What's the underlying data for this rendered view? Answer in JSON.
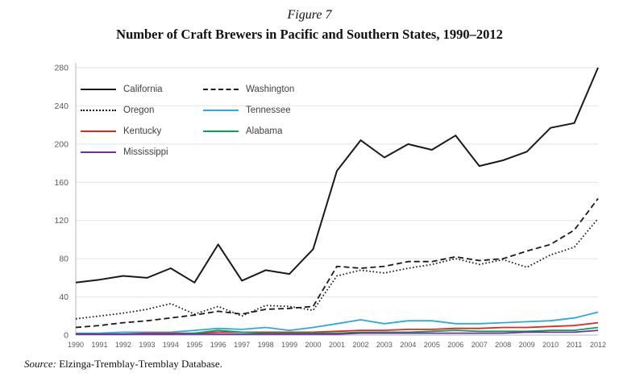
{
  "figure": {
    "label": "Figure 7",
    "title": "Number of Craft Brewers in Pacific and Southern States, 1990–2012",
    "source_prefix": "Source:",
    "source_text": " Elzinga-Tremblay-Tremblay Database."
  },
  "chart_data": {
    "type": "line",
    "title": "Number of Craft Brewers in Pacific and Southern States, 1990–2012",
    "xlabel": "",
    "ylabel": "",
    "x": [
      1990,
      1991,
      1992,
      1993,
      1994,
      1995,
      1996,
      1997,
      1998,
      1999,
      2000,
      2001,
      2002,
      2003,
      2004,
      2005,
      2006,
      2007,
      2008,
      2009,
      2010,
      2011,
      2012
    ],
    "ylim": [
      0,
      280
    ],
    "yticks": [
      0,
      40,
      80,
      120,
      160,
      200,
      240,
      280
    ],
    "grid": true,
    "legend_position": "top-left",
    "series": [
      {
        "name": "California",
        "color": "#1a1a1a",
        "style": "solid",
        "values": [
          55,
          58,
          62,
          60,
          70,
          55,
          95,
          57,
          68,
          64,
          90,
          172,
          204,
          186,
          200,
          194,
          209,
          177,
          183,
          192,
          217,
          222,
          280
        ]
      },
      {
        "name": "Washington",
        "color": "#1a1a1a",
        "style": "dashed",
        "values": [
          8,
          10,
          13,
          15,
          18,
          21,
          25,
          22,
          27,
          28,
          30,
          72,
          70,
          72,
          77,
          77,
          82,
          78,
          80,
          88,
          95,
          110,
          143
        ]
      },
      {
        "name": "Oregon",
        "color": "#1a1a1a",
        "style": "dotted",
        "values": [
          17,
          20,
          23,
          27,
          33,
          22,
          30,
          20,
          31,
          30,
          26,
          62,
          68,
          65,
          70,
          74,
          80,
          74,
          79,
          71,
          84,
          92,
          122
        ]
      },
      {
        "name": "Tennessee",
        "color": "#29abe2",
        "style": "solid",
        "values": [
          2,
          2,
          3,
          3,
          3,
          5,
          7,
          6,
          8,
          5,
          8,
          12,
          16,
          12,
          15,
          15,
          12,
          12,
          13,
          14,
          15,
          18,
          24
        ]
      },
      {
        "name": "Kentucky",
        "color": "#e8231f",
        "style": "solid",
        "values": [
          1,
          1,
          1,
          2,
          2,
          2,
          3,
          3,
          3,
          3,
          3,
          4,
          5,
          5,
          6,
          6,
          7,
          7,
          8,
          8,
          9,
          10,
          13
        ]
      },
      {
        "name": "Alabama",
        "color": "#00a551",
        "style": "solid",
        "values": [
          1,
          1,
          1,
          1,
          1,
          2,
          5,
          3,
          2,
          2,
          2,
          2,
          3,
          3,
          3,
          4,
          5,
          4,
          4,
          4,
          5,
          5,
          8
        ]
      },
      {
        "name": "Mississippi",
        "color": "#7030a0",
        "style": "solid",
        "values": [
          1,
          1,
          1,
          1,
          1,
          1,
          1,
          1,
          1,
          1,
          1,
          1,
          2,
          2,
          2,
          2,
          2,
          2,
          2,
          3,
          3,
          3,
          5
        ]
      }
    ]
  }
}
